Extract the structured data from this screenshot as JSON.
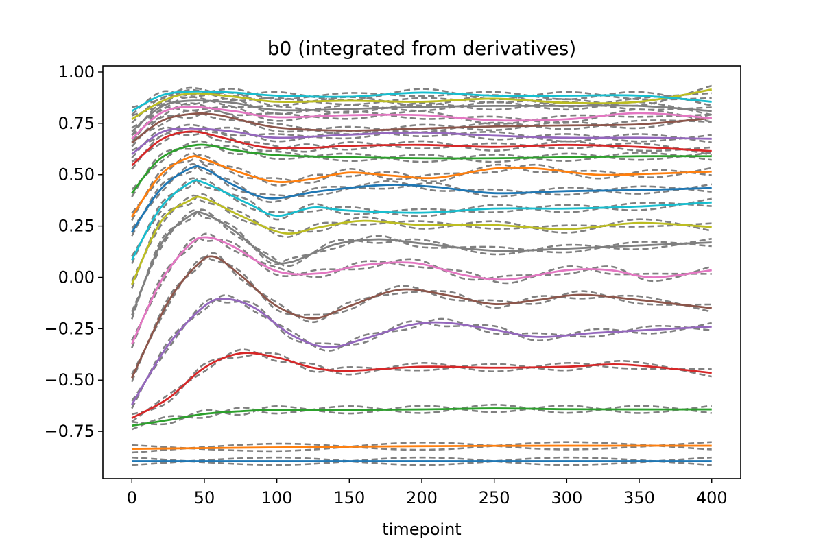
{
  "chart_data": {
    "type": "line",
    "title": "b0 (integrated from derivatives)",
    "xlabel": "timepoint",
    "ylabel": "",
    "xlim": [
      -20,
      420
    ],
    "ylim": [
      -0.98,
      1.03
    ],
    "xticks": [
      0,
      50,
      100,
      150,
      200,
      250,
      300,
      350,
      400
    ],
    "xtick_labels": [
      "0",
      "50",
      "100",
      "150",
      "200",
      "250",
      "300",
      "350",
      "400"
    ],
    "yticks": [
      -0.75,
      -0.5,
      -0.25,
      0.0,
      0.25,
      0.5,
      0.75,
      1.0
    ],
    "ytick_labels": [
      "−0.75",
      "−0.50",
      "−0.25",
      "0.00",
      "0.25",
      "0.50",
      "0.75",
      "1.00"
    ],
    "grid": false,
    "legend": "none",
    "reference_style": {
      "color": "#808080",
      "dash": "dashed"
    },
    "series": [
      {
        "color": "#1f77b4",
        "points": [
          [
            0,
            -0.895
          ],
          [
            100,
            -0.895
          ],
          [
            200,
            -0.895
          ],
          [
            300,
            -0.895
          ],
          [
            400,
            -0.895
          ]
        ]
      },
      {
        "color": "#ff7f0e",
        "points": [
          [
            0,
            -0.835
          ],
          [
            100,
            -0.828
          ],
          [
            200,
            -0.822
          ],
          [
            300,
            -0.82
          ],
          [
            400,
            -0.82
          ]
        ]
      },
      {
        "color": "#2ca02c",
        "points": [
          [
            0,
            -0.722
          ],
          [
            25,
            -0.695
          ],
          [
            50,
            -0.665
          ],
          [
            75,
            -0.652
          ],
          [
            100,
            -0.645
          ],
          [
            150,
            -0.645
          ],
          [
            200,
            -0.643
          ],
          [
            250,
            -0.638
          ],
          [
            300,
            -0.642
          ],
          [
            350,
            -0.643
          ],
          [
            400,
            -0.643
          ]
        ]
      },
      {
        "color": "#d62728",
        "points": [
          [
            0,
            -0.685
          ],
          [
            25,
            -0.59
          ],
          [
            50,
            -0.44
          ],
          [
            75,
            -0.37
          ],
          [
            100,
            -0.39
          ],
          [
            125,
            -0.44
          ],
          [
            150,
            -0.455
          ],
          [
            200,
            -0.435
          ],
          [
            250,
            -0.44
          ],
          [
            300,
            -0.435
          ],
          [
            340,
            -0.425
          ],
          [
            400,
            -0.465
          ]
        ]
      },
      {
        "color": "#9467bd",
        "points": [
          [
            0,
            -0.62
          ],
          [
            25,
            -0.33
          ],
          [
            50,
            -0.14
          ],
          [
            65,
            -0.105
          ],
          [
            85,
            -0.15
          ],
          [
            110,
            -0.28
          ],
          [
            135,
            -0.34
          ],
          [
            160,
            -0.3
          ],
          [
            190,
            -0.235
          ],
          [
            215,
            -0.22
          ],
          [
            250,
            -0.255
          ],
          [
            280,
            -0.29
          ],
          [
            320,
            -0.27
          ],
          [
            360,
            -0.255
          ],
          [
            400,
            -0.24
          ]
        ]
      },
      {
        "color": "#8c564b",
        "points": [
          [
            0,
            -0.49
          ],
          [
            25,
            -0.12
          ],
          [
            45,
            0.06
          ],
          [
            57,
            0.1
          ],
          [
            75,
            0.01
          ],
          [
            100,
            -0.14
          ],
          [
            125,
            -0.2
          ],
          [
            150,
            -0.14
          ],
          [
            185,
            -0.06
          ],
          [
            220,
            -0.09
          ],
          [
            250,
            -0.13
          ],
          [
            280,
            -0.11
          ],
          [
            310,
            -0.085
          ],
          [
            350,
            -0.11
          ],
          [
            400,
            -0.15
          ]
        ]
      },
      {
        "color": "#e377c2",
        "points": [
          [
            0,
            -0.325
          ],
          [
            20,
            -0.02
          ],
          [
            40,
            0.16
          ],
          [
            52,
            0.195
          ],
          [
            70,
            0.15
          ],
          [
            100,
            0.03
          ],
          [
            130,
            0.02
          ],
          [
            160,
            0.06
          ],
          [
            195,
            0.07
          ],
          [
            230,
            0.01
          ],
          [
            260,
            -0.01
          ],
          [
            300,
            0.035
          ],
          [
            330,
            0.035
          ],
          [
            360,
            0.0
          ],
          [
            400,
            0.035
          ]
        ]
      },
      {
        "color": "#7f7f7f",
        "points": [
          [
            0,
            -0.185
          ],
          [
            20,
            0.16
          ],
          [
            40,
            0.3
          ],
          [
            50,
            0.31
          ],
          [
            70,
            0.23
          ],
          [
            95,
            0.09
          ],
          [
            110,
            0.075
          ],
          [
            140,
            0.16
          ],
          [
            170,
            0.185
          ],
          [
            200,
            0.165
          ],
          [
            250,
            0.13
          ],
          [
            300,
            0.14
          ],
          [
            350,
            0.155
          ],
          [
            400,
            0.17
          ]
        ]
      },
      {
        "color": "#bcbd22",
        "points": [
          [
            0,
            -0.035
          ],
          [
            20,
            0.27
          ],
          [
            40,
            0.375
          ],
          [
            50,
            0.385
          ],
          [
            75,
            0.3
          ],
          [
            105,
            0.215
          ],
          [
            130,
            0.245
          ],
          [
            160,
            0.275
          ],
          [
            200,
            0.255
          ],
          [
            250,
            0.255
          ],
          [
            300,
            0.235
          ],
          [
            350,
            0.265
          ],
          [
            400,
            0.245
          ]
        ]
      },
      {
        "color": "#17becf",
        "points": [
          [
            0,
            0.085
          ],
          [
            20,
            0.34
          ],
          [
            40,
            0.46
          ],
          [
            50,
            0.46
          ],
          [
            80,
            0.36
          ],
          [
            100,
            0.3
          ],
          [
            125,
            0.34
          ],
          [
            150,
            0.325
          ],
          [
            200,
            0.315
          ],
          [
            250,
            0.335
          ],
          [
            300,
            0.335
          ],
          [
            350,
            0.345
          ],
          [
            400,
            0.365
          ]
        ]
      },
      {
        "color": "#1f77b4",
        "points": [
          [
            0,
            0.22
          ],
          [
            20,
            0.43
          ],
          [
            40,
            0.53
          ],
          [
            50,
            0.53
          ],
          [
            70,
            0.45
          ],
          [
            95,
            0.385
          ],
          [
            130,
            0.42
          ],
          [
            175,
            0.45
          ],
          [
            210,
            0.44
          ],
          [
            250,
            0.41
          ],
          [
            300,
            0.42
          ],
          [
            350,
            0.425
          ],
          [
            400,
            0.435
          ]
        ]
      },
      {
        "color": "#ff7f0e",
        "points": [
          [
            0,
            0.295
          ],
          [
            20,
            0.5
          ],
          [
            40,
            0.585
          ],
          [
            50,
            0.575
          ],
          [
            75,
            0.51
          ],
          [
            100,
            0.465
          ],
          [
            125,
            0.48
          ],
          [
            150,
            0.51
          ],
          [
            180,
            0.495
          ],
          [
            210,
            0.485
          ],
          [
            250,
            0.53
          ],
          [
            280,
            0.53
          ],
          [
            320,
            0.5
          ],
          [
            360,
            0.505
          ],
          [
            400,
            0.515
          ]
        ]
      },
      {
        "color": "#2ca02c",
        "points": [
          [
            0,
            0.41
          ],
          [
            20,
            0.58
          ],
          [
            45,
            0.645
          ],
          [
            70,
            0.62
          ],
          [
            100,
            0.595
          ],
          [
            150,
            0.585
          ],
          [
            200,
            0.58
          ],
          [
            250,
            0.58
          ],
          [
            300,
            0.585
          ],
          [
            350,
            0.59
          ],
          [
            400,
            0.59
          ]
        ]
      },
      {
        "color": "#d62728",
        "points": [
          [
            0,
            0.545
          ],
          [
            20,
            0.67
          ],
          [
            40,
            0.71
          ],
          [
            60,
            0.685
          ],
          [
            90,
            0.635
          ],
          [
            120,
            0.63
          ],
          [
            150,
            0.64
          ],
          [
            200,
            0.645
          ],
          [
            250,
            0.635
          ],
          [
            300,
            0.645
          ],
          [
            350,
            0.635
          ],
          [
            400,
            0.615
          ]
        ]
      },
      {
        "color": "#9467bd",
        "points": [
          [
            0,
            0.6
          ],
          [
            20,
            0.705
          ],
          [
            40,
            0.725
          ],
          [
            70,
            0.71
          ],
          [
            100,
            0.68
          ],
          [
            150,
            0.695
          ],
          [
            200,
            0.705
          ],
          [
            250,
            0.69
          ],
          [
            300,
            0.68
          ],
          [
            350,
            0.68
          ],
          [
            400,
            0.675
          ]
        ]
      },
      {
        "color": "#8c564b",
        "points": [
          [
            0,
            0.655
          ],
          [
            20,
            0.76
          ],
          [
            40,
            0.795
          ],
          [
            60,
            0.79
          ],
          [
            100,
            0.73
          ],
          [
            150,
            0.715
          ],
          [
            200,
            0.725
          ],
          [
            250,
            0.735
          ],
          [
            300,
            0.74
          ],
          [
            350,
            0.745
          ],
          [
            400,
            0.775
          ]
        ]
      },
      {
        "color": "#e377c2",
        "points": [
          [
            0,
            0.675
          ],
          [
            20,
            0.8
          ],
          [
            40,
            0.83
          ],
          [
            70,
            0.81
          ],
          [
            100,
            0.78
          ],
          [
            150,
            0.79
          ],
          [
            200,
            0.79
          ],
          [
            250,
            0.765
          ],
          [
            300,
            0.77
          ],
          [
            350,
            0.8
          ],
          [
            400,
            0.775
          ]
        ]
      },
      {
        "color": "#7f7f7f",
        "points": [
          [
            0,
            0.71
          ],
          [
            20,
            0.83
          ],
          [
            40,
            0.86
          ],
          [
            70,
            0.85
          ],
          [
            100,
            0.815
          ],
          [
            150,
            0.82
          ],
          [
            200,
            0.83
          ],
          [
            250,
            0.835
          ],
          [
            300,
            0.835
          ],
          [
            350,
            0.835
          ],
          [
            400,
            0.81
          ]
        ]
      },
      {
        "color": "#bcbd22",
        "points": [
          [
            0,
            0.77
          ],
          [
            20,
            0.855
          ],
          [
            40,
            0.895
          ],
          [
            70,
            0.88
          ],
          [
            100,
            0.855
          ],
          [
            150,
            0.86
          ],
          [
            200,
            0.855
          ],
          [
            250,
            0.87
          ],
          [
            300,
            0.85
          ],
          [
            350,
            0.855
          ],
          [
            400,
            0.915
          ]
        ]
      },
      {
        "color": "#17becf",
        "points": [
          [
            0,
            0.81
          ],
          [
            20,
            0.885
          ],
          [
            40,
            0.905
          ],
          [
            70,
            0.9
          ],
          [
            100,
            0.885
          ],
          [
            150,
            0.88
          ],
          [
            200,
            0.9
          ],
          [
            250,
            0.885
          ],
          [
            300,
            0.885
          ],
          [
            350,
            0.885
          ],
          [
            400,
            0.855
          ]
        ]
      }
    ]
  }
}
